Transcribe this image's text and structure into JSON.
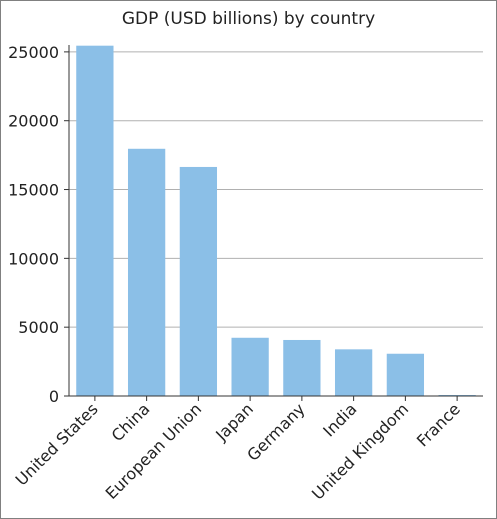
{
  "chart_data": {
    "type": "bar",
    "title": "GDP (USD billions) by country",
    "xlabel": "",
    "ylabel": "",
    "categories": [
      "United States",
      "China",
      "European Union",
      "Japan",
      "Germany",
      "India",
      "United Kingdom",
      "France"
    ],
    "values": [
      25450,
      17960,
      16640,
      4230,
      4070,
      3390,
      3070,
      20
    ],
    "ylim": [
      0,
      25500
    ],
    "yticks": [
      0,
      5000,
      10000,
      15000,
      20000,
      25000
    ],
    "grid": true,
    "legend": "none",
    "bar_color": "#8bbfe7",
    "grid_color": "#b0b0b0"
  }
}
